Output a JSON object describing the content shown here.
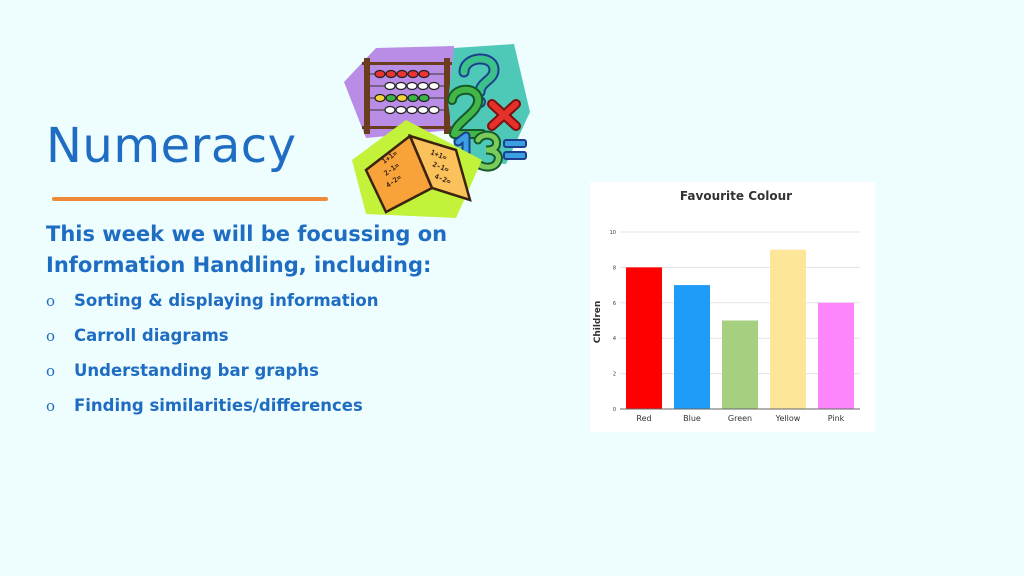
{
  "slide": {
    "title": "Numeracy",
    "intro": "This week we will be focussing on Information Handling, including:",
    "bullet_marker": "o",
    "bullets": [
      "Sorting & displaying information",
      "Carroll diagrams",
      "Understanding bar graphs",
      "Finding similarities/differences"
    ],
    "colors": {
      "text": "#1f6dc2",
      "underline": "#ee8a3a",
      "background": "#eefdfd"
    }
  },
  "clipart": {
    "icons": [
      "abacus-icon",
      "question-mark-icon",
      "number-2-icon",
      "multiply-icon",
      "number-13-icon",
      "equals-icon",
      "open-book-icon"
    ],
    "book_text": [
      "1+1=",
      "2-1=",
      "4-2=",
      "1+1=",
      "2-1=",
      "4-2="
    ]
  },
  "chart_data": {
    "type": "bar",
    "title": "Favourite Colour",
    "xlabel": "",
    "ylabel": "Children",
    "categories": [
      "Red",
      "Blue",
      "Green",
      "Yellow",
      "Pink"
    ],
    "values": [
      8,
      7,
      5,
      9,
      6
    ],
    "colors": [
      "#ff0000",
      "#1e9cf7",
      "#a6cf80",
      "#fde69a",
      "#fd86fc"
    ],
    "ylim": [
      0,
      10
    ],
    "yticks": [
      0,
      2,
      4,
      6,
      8,
      10
    ],
    "grid": true,
    "legend": "none"
  }
}
